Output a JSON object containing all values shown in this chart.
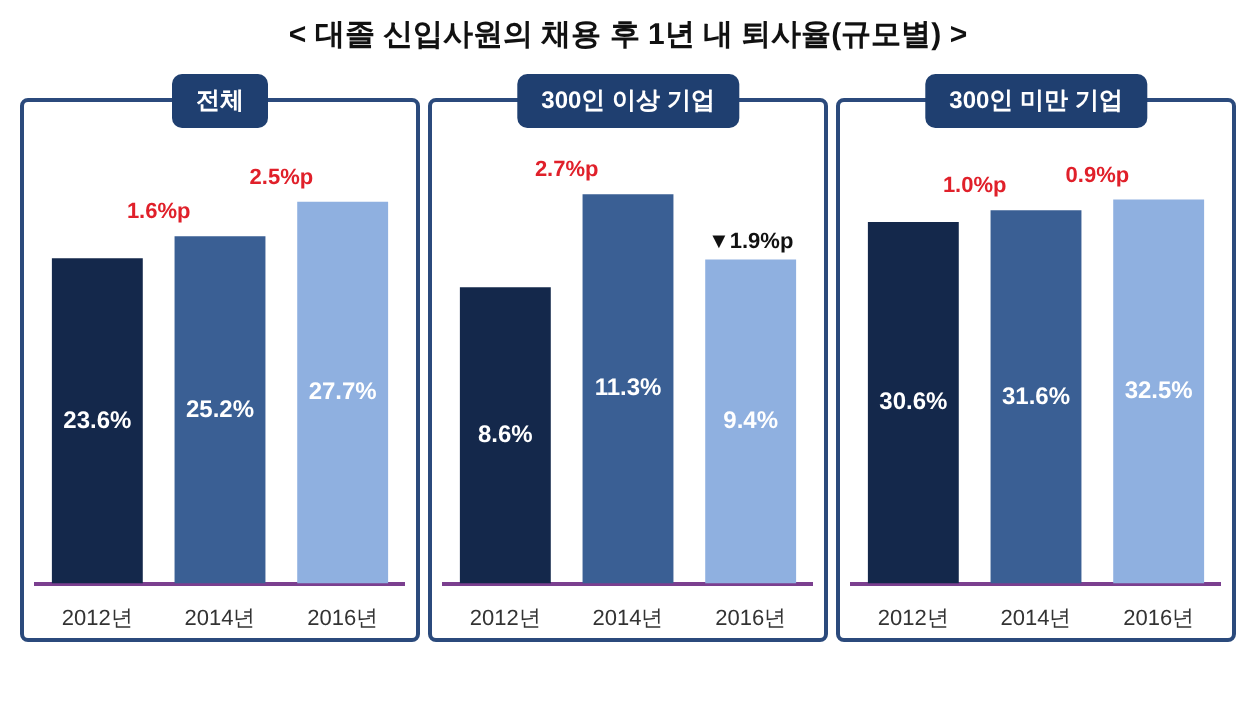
{
  "chart_data": [
    {
      "type": "other",
      "title": "< 대졸 신입사원의 채용 후 1년 내 퇴사율(규모별) >"
    },
    {
      "type": "bar",
      "title": "전체",
      "categories": [
        "2012년",
        "2014년",
        "2016년"
      ],
      "values": [
        23.6,
        25.2,
        27.7
      ],
      "colors": [
        "#14284b",
        "#3a5f94",
        "#8fb0e0"
      ],
      "value_labels": [
        "23.6%",
        "25.2%",
        "27.7%"
      ],
      "annotations": [
        "1.6%p",
        "2.5%p"
      ]
    },
    {
      "type": "bar",
      "title": "300인 이상 기업",
      "categories": [
        "2012년",
        "2014년",
        "2016년"
      ],
      "values": [
        8.6,
        11.3,
        9.4
      ],
      "colors": [
        "#14284b",
        "#3a5f94",
        "#8fb0e0"
      ],
      "value_labels": [
        "8.6%",
        "11.3%",
        "9.4%"
      ],
      "annotations": [
        "2.7%p",
        "▼1.9%p"
      ]
    },
    {
      "type": "bar",
      "title": "300인 미만 기업",
      "categories": [
        "2012년",
        "2014년",
        "2016년"
      ],
      "values": [
        30.6,
        31.6,
        32.5
      ],
      "colors": [
        "#14284b",
        "#3a5f94",
        "#8fb0e0"
      ],
      "value_labels": [
        "30.6%",
        "31.6%",
        "32.5%"
      ],
      "annotations": [
        "1.0%p",
        "0.9%p"
      ]
    }
  ]
}
